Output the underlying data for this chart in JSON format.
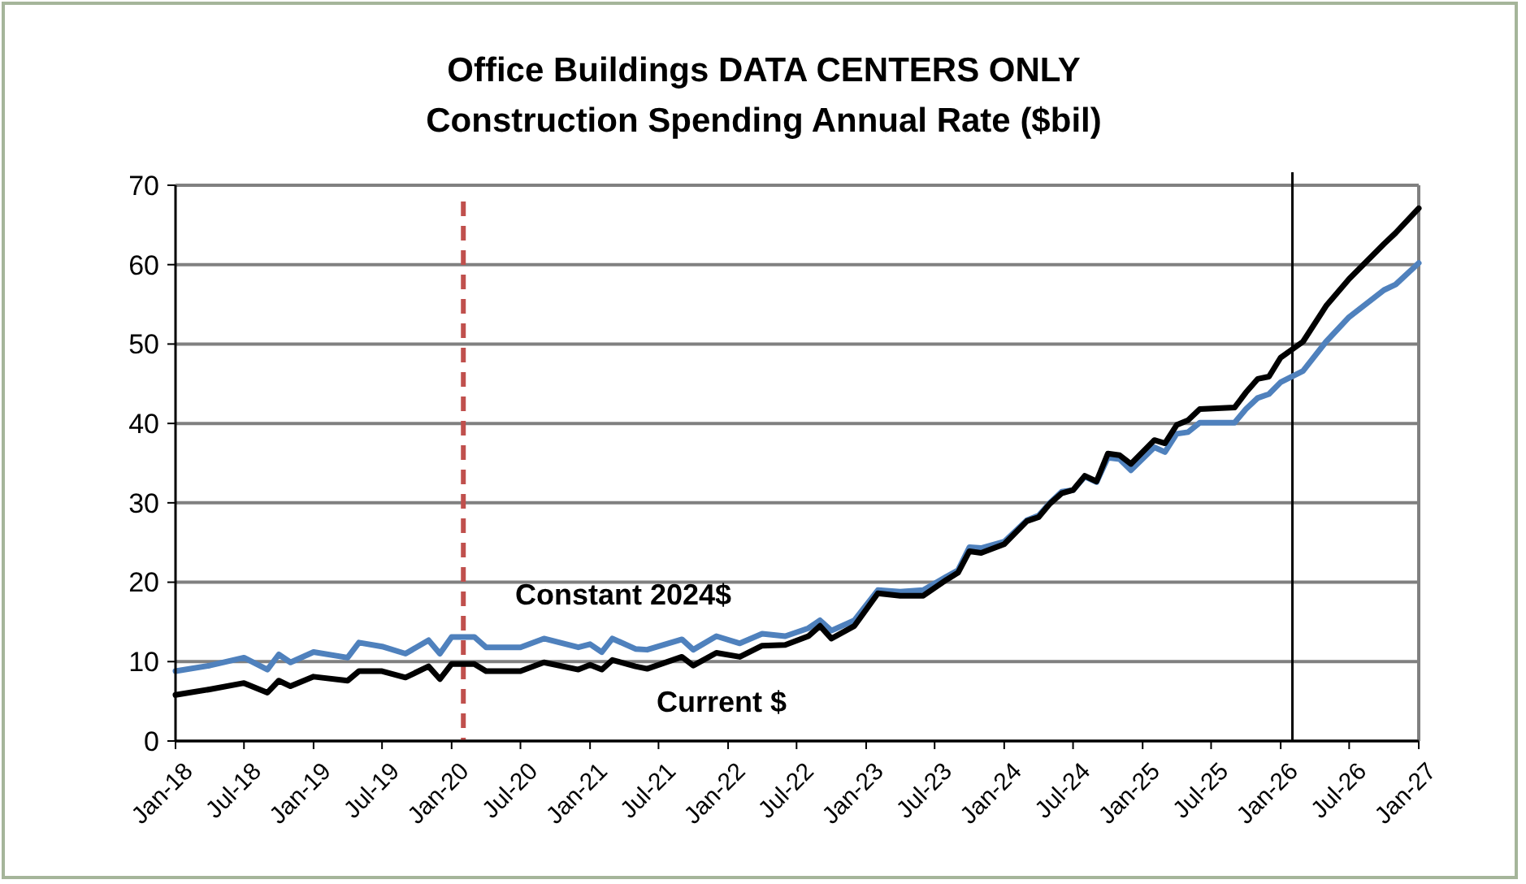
{
  "chart_data": {
    "type": "line",
    "title": "Office Buildings DATA CENTERS ONLY\nConstruction Spending Annual Rate ($bil)",
    "x": [
      "2018-01",
      "2018-04",
      "2018-07",
      "2018-09",
      "2018-10",
      "2018-11",
      "2019-01",
      "2019-04",
      "2019-05",
      "2019-07",
      "2019-09",
      "2019-11",
      "2019-12",
      "2020-01",
      "2020-03",
      "2020-04",
      "2020-07",
      "2020-09",
      "2020-12",
      "2021-01",
      "2021-02",
      "2021-03",
      "2021-05",
      "2021-06",
      "2021-09",
      "2021-10",
      "2021-12",
      "2022-02",
      "2022-04",
      "2022-06",
      "2022-08",
      "2022-09",
      "2022-10",
      "2022-12",
      "2023-02",
      "2023-04",
      "2023-06",
      "2023-08",
      "2023-09",
      "2023-10",
      "2023-11",
      "2024-01",
      "2024-03",
      "2024-04",
      "2024-05",
      "2024-06",
      "2024-07",
      "2024-08",
      "2024-09",
      "2024-10",
      "2024-11",
      "2024-12",
      "2025-02",
      "2025-03",
      "2025-04",
      "2025-05",
      "2025-06",
      "2025-09",
      "2025-10",
      "2025-11",
      "2025-12",
      "2026-01",
      "2026-03",
      "2026-05",
      "2026-07",
      "2026-10",
      "2026-11",
      "2027-01"
    ],
    "series": [
      {
        "name": "Constant 2024$",
        "color": "#4f81bd",
        "values": [
          8.8,
          9.5,
          10.5,
          9.0,
          10.9,
          9.9,
          11.2,
          10.5,
          12.4,
          11.9,
          11.0,
          12.7,
          11.0,
          13.1,
          13.1,
          11.8,
          11.8,
          12.9,
          11.8,
          12.2,
          11.2,
          12.9,
          11.6,
          11.5,
          12.8,
          11.5,
          13.2,
          12.3,
          13.5,
          13.2,
          14.2,
          15.2,
          13.9,
          15.2,
          19.0,
          18.8,
          19.0,
          20.7,
          21.5,
          24.4,
          24.3,
          25.1,
          27.8,
          28.4,
          30.0,
          31.4,
          31.6,
          33.3,
          32.6,
          35.7,
          35.5,
          34.1,
          37.0,
          36.4,
          38.7,
          38.9,
          40.1,
          40.1,
          41.8,
          43.2,
          43.7,
          45.2,
          46.6,
          50.3,
          53.4,
          56.8,
          57.5,
          60.2
        ]
      },
      {
        "name": "Current $",
        "color": "#000000",
        "values": [
          5.8,
          6.5,
          7.3,
          6.1,
          7.6,
          6.9,
          8.1,
          7.6,
          8.8,
          8.8,
          8.0,
          9.4,
          7.8,
          9.7,
          9.7,
          8.8,
          8.8,
          9.9,
          9.0,
          9.6,
          9.0,
          10.2,
          9.4,
          9.1,
          10.6,
          9.5,
          11.1,
          10.6,
          12.0,
          12.1,
          13.2,
          14.5,
          12.9,
          14.5,
          18.6,
          18.3,
          18.3,
          20.3,
          21.2,
          23.9,
          23.7,
          24.8,
          27.7,
          28.2,
          29.9,
          31.2,
          31.6,
          33.4,
          32.7,
          36.2,
          36.0,
          34.9,
          37.9,
          37.5,
          39.8,
          40.4,
          41.8,
          42.0,
          43.9,
          45.6,
          45.9,
          48.3,
          50.3,
          54.8,
          58.2,
          62.6,
          64.0,
          67.1
        ]
      }
    ],
    "xlim": [
      "2018-01",
      "2027-01"
    ],
    "xticks": [
      {
        "value": "2018-01",
        "label": "Jan-18"
      },
      {
        "value": "2018-07",
        "label": "Jul-18"
      },
      {
        "value": "2019-01",
        "label": "Jan-19"
      },
      {
        "value": "2019-07",
        "label": "Jul-19"
      },
      {
        "value": "2020-01",
        "label": "Jan-20"
      },
      {
        "value": "2020-07",
        "label": "Jul-20"
      },
      {
        "value": "2021-01",
        "label": "Jan-21"
      },
      {
        "value": "2021-07",
        "label": "Jul-21"
      },
      {
        "value": "2022-01",
        "label": "Jan-22"
      },
      {
        "value": "2022-07",
        "label": "Jul-22"
      },
      {
        "value": "2023-01",
        "label": "Jan-23"
      },
      {
        "value": "2023-07",
        "label": "Jul-23"
      },
      {
        "value": "2024-01",
        "label": "Jan-24"
      },
      {
        "value": "2024-07",
        "label": "Jul-24"
      },
      {
        "value": "2025-01",
        "label": "Jan-25"
      },
      {
        "value": "2025-07",
        "label": "Jul-25"
      },
      {
        "value": "2026-01",
        "label": "Jan-26"
      },
      {
        "value": "2026-07",
        "label": "Jul-26"
      },
      {
        "value": "2027-01",
        "label": "Jan-27"
      }
    ],
    "ylim": [
      0,
      70
    ],
    "yticks": [
      0,
      10,
      20,
      30,
      40,
      50,
      60,
      70
    ],
    "grid": "y",
    "line_style": "solid",
    "ref_lines": [
      {
        "axis": "x",
        "value": "2020-02",
        "color": "#c0504d",
        "line_style": "dashed"
      },
      {
        "axis": "x",
        "value": "2026-02",
        "color": "#000000",
        "line_style": "solid"
      }
    ]
  }
}
